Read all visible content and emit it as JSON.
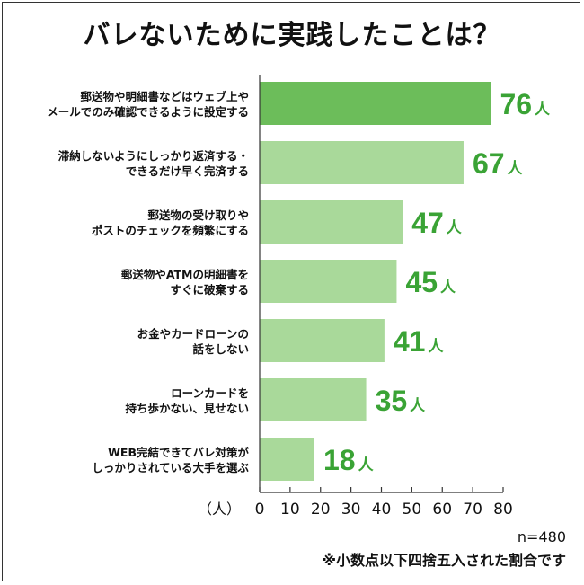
{
  "chart_data": {
    "type": "bar",
    "orientation": "horizontal",
    "title": "バレないために実践したことは？",
    "categories": [
      [
        "郵送物や明細書などはウェブ上や",
        "メールでのみ確認できるように設定する"
      ],
      [
        "滞納しないようにしっかり返済する・",
        "できるだけ早く完済する"
      ],
      [
        "郵送物の受け取りや",
        "ポストのチェックを頻繁にする"
      ],
      [
        "郵送物やATMの明細書を",
        "すぐに破棄する"
      ],
      [
        "お金やカードローンの",
        "話をしない"
      ],
      [
        "ローンカードを",
        "持ち歩かない、見せない"
      ],
      [
        "WEB完結できてバレ対策が",
        "しっかりされている大手を選ぶ"
      ]
    ],
    "values": [
      76,
      67,
      47,
      45,
      41,
      35,
      18
    ],
    "value_suffix": "人",
    "xlabel": "（人）",
    "xlim": [
      0,
      80
    ],
    "xticks": [
      0,
      10,
      20,
      30,
      40,
      50,
      60,
      70,
      80
    ],
    "grid": false,
    "colors": {
      "highlight_bar": "#6cbd5a",
      "bar": "#a9d99a",
      "value_label": "#3aa335"
    }
  },
  "footer": {
    "sample_size": "n=480",
    "note": "※小数点以下四捨五入された割合です"
  }
}
